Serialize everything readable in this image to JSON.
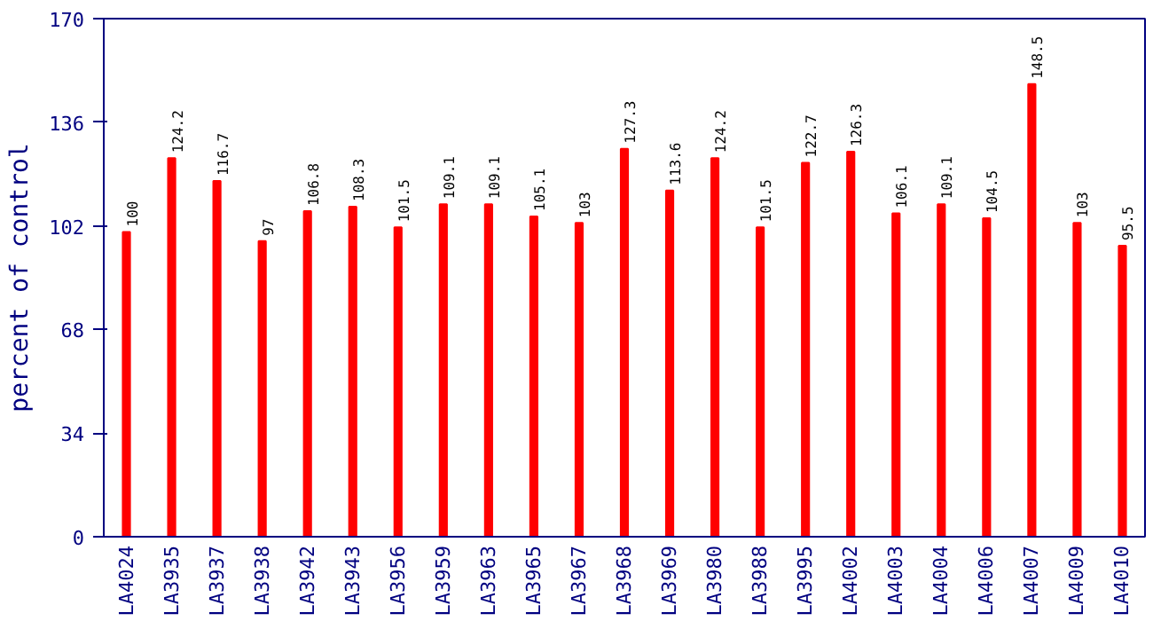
{
  "chart_data": {
    "type": "bar",
    "ylabel": "percent of control",
    "categories": [
      "LA4024",
      "LA3935",
      "LA3937",
      "LA3938",
      "LA3942",
      "LA3943",
      "LA3956",
      "LA3959",
      "LA3963",
      "LA3965",
      "LA3967",
      "LA3968",
      "LA3969",
      "LA3980",
      "LA3988",
      "LA3995",
      "LA4002",
      "LA4003",
      "LA4004",
      "LA4006",
      "LA4007",
      "LA4009",
      "LA4010"
    ],
    "values": [
      100,
      124.2,
      116.7,
      97,
      106.8,
      108.3,
      101.5,
      109.1,
      109.1,
      105.1,
      103,
      127.3,
      113.6,
      124.2,
      101.5,
      122.7,
      126.3,
      106.1,
      109.1,
      104.5,
      148.5,
      103,
      95.5
    ],
    "color": "#ff0000",
    "ylim": [
      0,
      170
    ],
    "yticks": [
      0,
      34,
      68,
      102,
      136,
      170
    ],
    "grid": false,
    "data_labels": true
  }
}
